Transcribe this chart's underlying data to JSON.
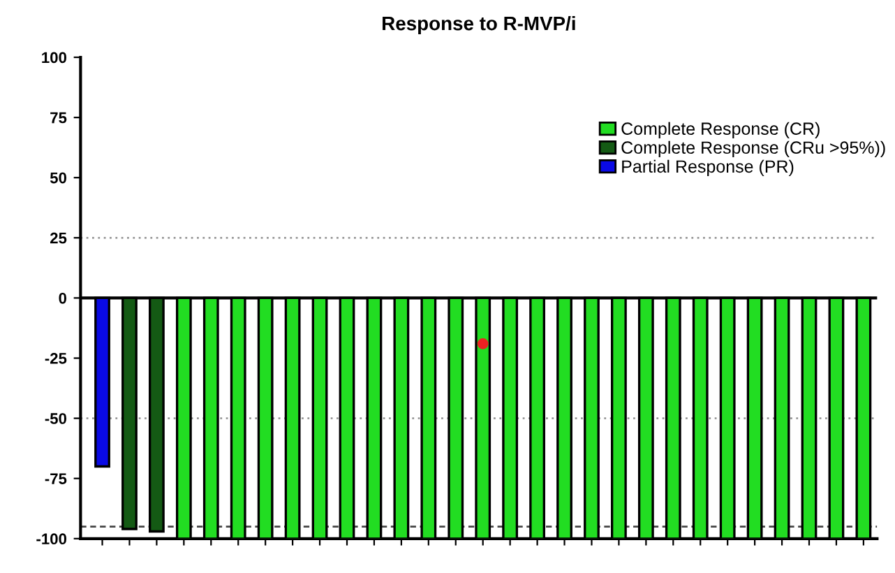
{
  "chart_data": {
    "type": "bar",
    "title": "Response to R-MVP/i",
    "categories": [
      null,
      null,
      null,
      null,
      null,
      null,
      null,
      null,
      null,
      null,
      null,
      null,
      null,
      null,
      null,
      null,
      null,
      null,
      null,
      null,
      null,
      null,
      null,
      null,
      null,
      null,
      null,
      null,
      null
    ],
    "series": [
      {
        "name": "Complete Response (CR)",
        "color": "#22dd22",
        "values": [
          null,
          null,
          null,
          -100,
          -100,
          -100,
          -100,
          -100,
          -100,
          -100,
          -100,
          -100,
          -100,
          -100,
          -100,
          -100,
          -100,
          -100,
          -100,
          -100,
          -100,
          -100,
          -100,
          -100,
          -100,
          -100,
          -100,
          -100,
          -100
        ]
      },
      {
        "name": "Complete Response (CRu >95%))",
        "color": "#145a14",
        "values": [
          null,
          -96,
          -97,
          null,
          null,
          null,
          null,
          null,
          null,
          null,
          null,
          null,
          null,
          null,
          null,
          null,
          null,
          null,
          null,
          null,
          null,
          null,
          null,
          null,
          null,
          null,
          null,
          null,
          null
        ]
      },
      {
        "name": "Partial Response (PR)",
        "color": "#0a0ae6",
        "values": [
          -70,
          null,
          null,
          null,
          null,
          null,
          null,
          null,
          null,
          null,
          null,
          null,
          null,
          null,
          null,
          null,
          null,
          null,
          null,
          null,
          null,
          null,
          null,
          null,
          null,
          null,
          null,
          null,
          null
        ]
      },
      {
        "type": "scatter",
        "color": "#ee2222",
        "values": [
          null,
          null,
          null,
          null,
          null,
          null,
          null,
          null,
          null,
          null,
          null,
          null,
          null,
          null,
          -19,
          null,
          null,
          null,
          null,
          null,
          null,
          null,
          null,
          null,
          null,
          null,
          null,
          null,
          null
        ]
      }
    ],
    "ylim": [
      -100,
      100
    ],
    "yticks": [
      -100,
      -75,
      -50,
      -25,
      0,
      25,
      50,
      75,
      100
    ],
    "ref_lines": [
      {
        "axis": "y",
        "value": 0,
        "color": "#000000",
        "line_style": "solid"
      },
      {
        "axis": "y",
        "value": 25,
        "color": "#999999",
        "line_style": "dotted"
      },
      {
        "axis": "y",
        "value": -50,
        "color": "#999999",
        "line_style": "dotted"
      },
      {
        "axis": "y",
        "value": -95,
        "color": "#444444",
        "line_style": "dashed"
      }
    ],
    "legend": "top right",
    "grid": false
  }
}
